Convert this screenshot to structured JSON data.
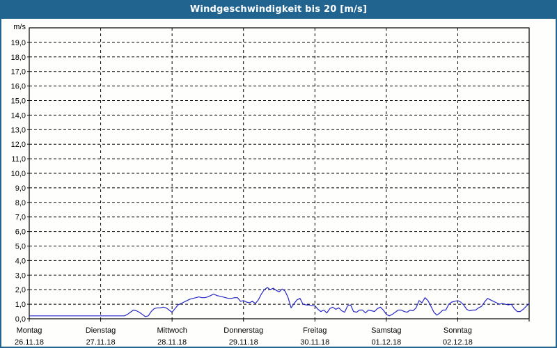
{
  "title_bar": {
    "title": "Windgeschwindigkeit bis 20 [m/s]",
    "bg_color": "#20648f",
    "text_color": "#ffffff"
  },
  "chart": {
    "unit_label": "m/s",
    "y_tick_labels": [
      "0,0",
      "1,0",
      "2,0",
      "3,0",
      "4,0",
      "5,0",
      "6,0",
      "7,0",
      "8,0",
      "9,0",
      "10,0",
      "11,0",
      "12,0",
      "13,0",
      "14,0",
      "15,0",
      "16,0",
      "17,0",
      "18,0",
      "19,0"
    ],
    "x_ticks": [
      {
        "day": "Montag",
        "date": "26.11.18"
      },
      {
        "day": "Dienstag",
        "date": "27.11.18"
      },
      {
        "day": "Mittwoch",
        "date": "28.11.18"
      },
      {
        "day": "Donnerstag",
        "date": "29.11.18"
      },
      {
        "day": "Freitag",
        "date": "30.11.18"
      },
      {
        "day": "Samstag",
        "date": "01.12.18"
      },
      {
        "day": "Sonntag",
        "date": "02.12.18"
      }
    ],
    "colors": {
      "line": "#2626c9",
      "grid": "#000000",
      "frame": "#000000",
      "background": "#fefefc",
      "text": "#000000"
    }
  },
  "chart_data": {
    "type": "line",
    "title": "Windgeschwindigkeit bis 20 [m/s]",
    "ylabel": "m/s",
    "ylim": [
      0,
      20
    ],
    "grid": "dashed",
    "legend": "none",
    "x_categories": [
      "Montag 26.11.18",
      "Dienstag 27.11.18",
      "Mittwoch 28.11.18",
      "Donnerstag 29.11.18",
      "Freitag 30.11.18",
      "Samstag 01.12.18",
      "Sonntag 02.12.18"
    ],
    "x_unit": "hours from Montag 26.11.18 00:00",
    "x_start_hour": 0,
    "x_step_hours": 1,
    "x_total_hours": 168,
    "values": [
      0.2,
      0.2,
      0.2,
      0.2,
      0.2,
      0.2,
      0.2,
      0.2,
      0.2,
      0.2,
      0.2,
      0.2,
      0.2,
      0.2,
      0.2,
      0.2,
      0.2,
      0.2,
      0.2,
      0.2,
      0.2,
      0.2,
      0.2,
      0.2,
      0.2,
      0.2,
      0.2,
      0.2,
      0.2,
      0.2,
      0.2,
      0.2,
      0.2,
      0.3,
      0.45,
      0.6,
      0.55,
      0.45,
      0.3,
      0.15,
      0.2,
      0.5,
      0.7,
      0.75,
      0.75,
      0.8,
      0.75,
      0.6,
      0.45,
      0.7,
      0.95,
      1.05,
      1.15,
      1.25,
      1.35,
      1.4,
      1.45,
      1.5,
      1.45,
      1.45,
      1.5,
      1.6,
      1.7,
      1.6,
      1.55,
      1.5,
      1.45,
      1.4,
      1.4,
      1.45,
      1.45,
      1.2,
      1.25,
      1.15,
      1.1,
      1.2,
      1.05,
      1.3,
      1.7,
      2.0,
      2.15,
      2.0,
      2.1,
      1.95,
      1.85,
      2.05,
      1.9,
      1.45,
      0.75,
      1.05,
      1.3,
      1.4,
      1.0,
      0.95,
      0.95,
      0.9,
      0.9,
      0.65,
      0.5,
      0.6,
      0.4,
      0.7,
      0.8,
      0.65,
      0.75,
      0.55,
      0.45,
      0.9,
      0.95,
      0.5,
      0.45,
      0.6,
      0.6,
      0.4,
      0.6,
      0.55,
      0.5,
      0.7,
      0.8,
      0.6,
      0.3,
      0.2,
      0.3,
      0.45,
      0.6,
      0.6,
      0.5,
      0.45,
      0.6,
      0.55,
      0.75,
      1.25,
      1.1,
      1.45,
      1.25,
      0.85,
      0.45,
      0.25,
      0.4,
      0.6,
      0.6,
      1.0,
      1.15,
      1.2,
      1.25,
      1.15,
      0.95,
      0.65,
      0.55,
      0.6,
      0.6,
      0.75,
      0.85,
      1.15,
      1.4,
      1.3,
      1.2,
      1.1,
      1.0,
      1.05,
      1.0,
      0.95,
      1.0,
      0.7,
      0.5,
      0.5,
      0.65,
      0.85,
      1.05
    ]
  }
}
